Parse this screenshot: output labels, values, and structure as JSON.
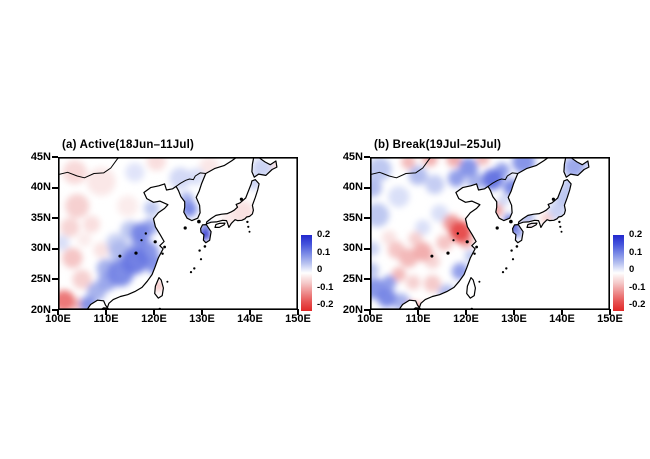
{
  "figure": {
    "background": "#ffffff",
    "panel_count": 2,
    "colorbar_blue": "#2228cd",
    "colorbar_red": "#e12828"
  },
  "chart_data": [
    {
      "type": "heatmap",
      "title": "(a) Active(18Jun–11Jul)",
      "x_tick_labels": [
        "100E",
        "110E",
        "120E",
        "130E",
        "140E",
        "150E"
      ],
      "y_tick_labels": [
        "45N",
        "40N",
        "35N",
        "30N",
        "25N",
        "20N"
      ],
      "lon_range": [
        100,
        150
      ],
      "lat_range": [
        20,
        45
      ],
      "colorbar_tick_labels": [
        "0.2",
        "0.1",
        "0",
        "-0.1",
        "-0.2"
      ],
      "colorbar_range": [
        -0.2,
        0.2
      ],
      "colorbar_orientation": "vertical-right",
      "anomaly_centers_fields": [
        "lon",
        "lat",
        "radius_deg",
        "value"
      ],
      "anomaly_centers": [
        [
          103.5,
          42.5,
          2.5,
          -0.04
        ],
        [
          109,
          41,
          3,
          -0.025
        ],
        [
          120.5,
          44.3,
          2,
          -0.035
        ],
        [
          131.5,
          43.5,
          2,
          -0.025
        ],
        [
          116,
          42.5,
          2,
          0.025
        ],
        [
          125.5,
          41.5,
          2.3,
          0.035
        ],
        [
          128.8,
          41.8,
          1.8,
          0.03
        ],
        [
          104,
          37,
          2.5,
          -0.05
        ],
        [
          114.5,
          37,
          2.2,
          -0.02
        ],
        [
          102.5,
          33.5,
          2,
          -0.045
        ],
        [
          107,
          34,
          1.8,
          -0.035
        ],
        [
          103,
          28.5,
          2.1,
          -0.06
        ],
        [
          109,
          29.8,
          1.6,
          -0.03
        ],
        [
          105,
          25,
          2,
          -0.05
        ],
        [
          105.5,
          31.5,
          1.5,
          -0.02
        ],
        [
          101.3,
          21.5,
          2.2,
          -0.13
        ],
        [
          103.9,
          20.9,
          1.4,
          -0.07
        ],
        [
          106.2,
          20.9,
          1.7,
          0.1
        ],
        [
          108,
          23,
          2,
          0.07
        ],
        [
          110.2,
          24.6,
          2,
          0.08
        ],
        [
          113,
          26,
          2.8,
          0.11
        ],
        [
          116,
          28,
          2.8,
          0.12
        ],
        [
          118.6,
          29.4,
          2.4,
          0.1
        ],
        [
          120.2,
          27.3,
          1.9,
          0.1
        ],
        [
          113,
          29.6,
          2.4,
          0.06
        ],
        [
          110,
          26.8,
          2,
          0.07
        ],
        [
          112,
          31,
          2,
          0.04
        ],
        [
          115,
          33,
          2,
          0.05
        ],
        [
          117.2,
          32.6,
          2.1,
          0.11
        ],
        [
          119.2,
          33.6,
          1.7,
          0.08
        ],
        [
          119.5,
          36.6,
          1.6,
          0.05
        ],
        [
          117,
          30.8,
          1.8,
          0.09
        ],
        [
          100.8,
          31,
          1.6,
          0.03
        ],
        [
          127.3,
          36.5,
          1.7,
          0.11
        ],
        [
          126.8,
          38.2,
          1.4,
          0.07
        ],
        [
          130.6,
          32.3,
          1.2,
          0.2
        ],
        [
          130.9,
          33.5,
          1,
          0.12
        ],
        [
          138.5,
          36,
          2.4,
          -0.03
        ],
        [
          135.5,
          34.8,
          1.6,
          -0.02
        ],
        [
          140.8,
          40.8,
          1.5,
          0.04
        ],
        [
          142.5,
          43.2,
          2.1,
          0.04
        ],
        [
          145.8,
          43.5,
          1.6,
          -0.03
        ],
        [
          120.9,
          23.9,
          1,
          -0.07
        ]
      ]
    },
    {
      "type": "heatmap",
      "title": "(b) Break(19Jul–25Jul)",
      "x_tick_labels": [
        "100E",
        "110E",
        "120E",
        "130E",
        "140E",
        "150E"
      ],
      "y_tick_labels": [
        "45N",
        "40N",
        "35N",
        "30N",
        "25N",
        "20N"
      ],
      "lon_range": [
        100,
        150
      ],
      "lat_range": [
        20,
        45
      ],
      "colorbar_tick_labels": [
        "0.2",
        "0.1",
        "0",
        "-0.1",
        "-0.2"
      ],
      "colorbar_range": [
        -0.2,
        0.2
      ],
      "colorbar_orientation": "vertical-right",
      "anomaly_centers_fields": [
        "lon",
        "lat",
        "radius_deg",
        "value"
      ],
      "anomaly_centers": [
        [
          102,
          43,
          2.5,
          0.05
        ],
        [
          100.5,
          40,
          2,
          0.06
        ],
        [
          101.5,
          35.5,
          2.5,
          0.05
        ],
        [
          106,
          38.5,
          2.2,
          0.03
        ],
        [
          110,
          42,
          2,
          0.06
        ],
        [
          113.5,
          40.5,
          2,
          0.045
        ],
        [
          114.5,
          35.8,
          1.8,
          0.03
        ],
        [
          111,
          33.5,
          1.6,
          0.03
        ],
        [
          108,
          44.2,
          1.5,
          -0.07
        ],
        [
          112.5,
          44.7,
          1.6,
          -0.08
        ],
        [
          117.5,
          44.6,
          1.6,
          -0.08
        ],
        [
          123.5,
          44.7,
          1.4,
          -0.07
        ],
        [
          120.5,
          43.3,
          2,
          0.1
        ],
        [
          118,
          41.5,
          1.8,
          0.09
        ],
        [
          122,
          41,
          1.8,
          0.07
        ],
        [
          125.5,
          41.3,
          2.2,
          0.13
        ],
        [
          127.5,
          42.8,
          1.6,
          0.09
        ],
        [
          132,
          44.2,
          2.4,
          0.1
        ],
        [
          129.5,
          40,
          1.8,
          0.11
        ],
        [
          118.8,
          32.8,
          2.3,
          -0.17
        ],
        [
          117,
          34.2,
          1.8,
          -0.1
        ],
        [
          120,
          31.3,
          1.5,
          -0.09
        ],
        [
          115.5,
          31,
          1.7,
          -0.06
        ],
        [
          111,
          29.5,
          2,
          -0.08
        ],
        [
          108,
          28.5,
          2,
          -0.07
        ],
        [
          105.5,
          29.8,
          1.8,
          -0.06
        ],
        [
          109.5,
          31.6,
          1.5,
          -0.05
        ],
        [
          113,
          28,
          1.6,
          -0.045
        ],
        [
          106,
          25.8,
          1.5,
          -0.07
        ],
        [
          109,
          24.5,
          1.5,
          -0.05
        ],
        [
          113,
          24.3,
          1.8,
          -0.055
        ],
        [
          104,
          31.8,
          1.5,
          -0.03
        ],
        [
          101,
          23.5,
          2.2,
          0.1
        ],
        [
          103.5,
          22,
          2,
          0.11
        ],
        [
          106.5,
          21.3,
          1.8,
          0.07
        ],
        [
          100.3,
          26.5,
          1.6,
          0.05
        ],
        [
          104,
          24.5,
          1.5,
          0.09
        ],
        [
          100.5,
          30,
          1.5,
          0.04
        ],
        [
          118.8,
          26.3,
          1.8,
          0.09
        ],
        [
          116,
          22.8,
          1.8,
          0.06
        ],
        [
          121,
          28.8,
          1.3,
          0.05
        ],
        [
          108.8,
          20.3,
          1.4,
          -0.12
        ],
        [
          110.8,
          20.2,
          1.2,
          -0.08
        ],
        [
          120.8,
          20.3,
          1.2,
          -0.1
        ],
        [
          126.3,
          36.3,
          1.4,
          -0.09
        ],
        [
          127.8,
          37.9,
          1.3,
          0.035
        ],
        [
          128.8,
          35.1,
          1,
          0.08
        ],
        [
          129.4,
          34.1,
          1.4,
          0.2
        ],
        [
          130.6,
          32.8,
          1.3,
          0.1
        ],
        [
          132.8,
          35.3,
          1.5,
          0.06
        ],
        [
          132.9,
          33.8,
          0.9,
          -0.04
        ],
        [
          136.8,
          34.9,
          1.2,
          -0.05
        ],
        [
          139,
          36.2,
          2,
          0.04
        ],
        [
          140.5,
          38.5,
          2,
          0.05
        ],
        [
          141.5,
          40.6,
          1.5,
          0.05
        ],
        [
          142.5,
          43.4,
          2.2,
          0.08
        ],
        [
          145.2,
          44.3,
          1.5,
          0.04
        ]
      ]
    }
  ]
}
